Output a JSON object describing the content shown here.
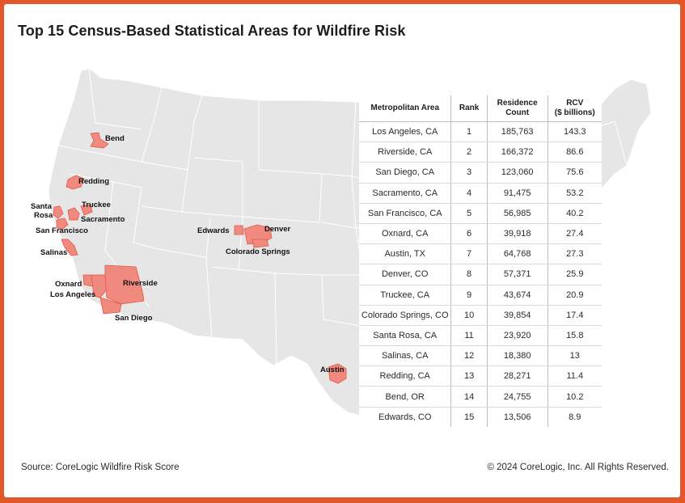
{
  "title": "Top 15 Census-Based Statistical Areas for Wildfire Risk",
  "footer": {
    "source": "Source: CoreLogic Wildfire Risk Score",
    "copyright": "© 2024 CoreLogic, Inc. All Rights Reserved."
  },
  "colors": {
    "frame": "#e2572a",
    "land": "#e6e6e6",
    "borders": "#ffffff",
    "highlight": "#f08a7e",
    "highlight_stroke": "#e0574a"
  },
  "map_labels": {
    "bend": "Bend",
    "redding": "Redding",
    "santa_rosa_1": "Santa",
    "santa_rosa_2": "Rosa",
    "truckee": "Truckee",
    "sacramento": "Sacramento",
    "san_francisco": "San Francisco",
    "salinas": "Salinas",
    "oxnard": "Oxnard",
    "los_angeles": "Los Angeles",
    "riverside": "Riverside",
    "san_diego": "San Diego",
    "edwards": "Edwards",
    "denver": "Denver",
    "colorado_springs": "Colorado Springs",
    "austin": "Austin"
  },
  "table": {
    "headers": {
      "metro": "Metropolitan Area",
      "rank": "Rank",
      "residence_1": "Residence",
      "residence_2": "Count",
      "rcv_1": "RCV",
      "rcv_2": "($ billions)"
    },
    "rows": [
      {
        "metro": "Los Angeles, CA",
        "rank": "1",
        "count": "185,763",
        "rcv": "143.3"
      },
      {
        "metro": "Riverside, CA",
        "rank": "2",
        "count": "166,372",
        "rcv": "86.6"
      },
      {
        "metro": "San Diego, CA",
        "rank": "3",
        "count": "123,060",
        "rcv": "75.6"
      },
      {
        "metro": "Sacramento, CA",
        "rank": "4",
        "count": "91,475",
        "rcv": "53.2"
      },
      {
        "metro": "San Francisco, CA",
        "rank": "5",
        "count": "56,985",
        "rcv": "40.2"
      },
      {
        "metro": "Oxnard, CA",
        "rank": "6",
        "count": "39,918",
        "rcv": "27.4"
      },
      {
        "metro": "Austin, TX",
        "rank": "7",
        "count": "64,768",
        "rcv": "27.3"
      },
      {
        "metro": "Denver, CO",
        "rank": "8",
        "count": "57,371",
        "rcv": "25.9"
      },
      {
        "metro": "Truckee, CA",
        "rank": "9",
        "count": "43,674",
        "rcv": "20.9"
      },
      {
        "metro": "Colorado Springs, CO",
        "rank": "10",
        "count": "39,854",
        "rcv": "17.4"
      },
      {
        "metro": "Santa Rosa, CA",
        "rank": "11",
        "count": "23,920",
        "rcv": "15.8"
      },
      {
        "metro": "Salinas, CA",
        "rank": "12",
        "count": "18,380",
        "rcv": "13"
      },
      {
        "metro": "Redding, CA",
        "rank": "13",
        "count": "28,271",
        "rcv": "11.4"
      },
      {
        "metro": "Bend, OR",
        "rank": "14",
        "count": "24,755",
        "rcv": "10.2"
      },
      {
        "metro": "Edwards, CO",
        "rank": "15",
        "count": "13,506",
        "rcv": "8.9"
      }
    ]
  }
}
